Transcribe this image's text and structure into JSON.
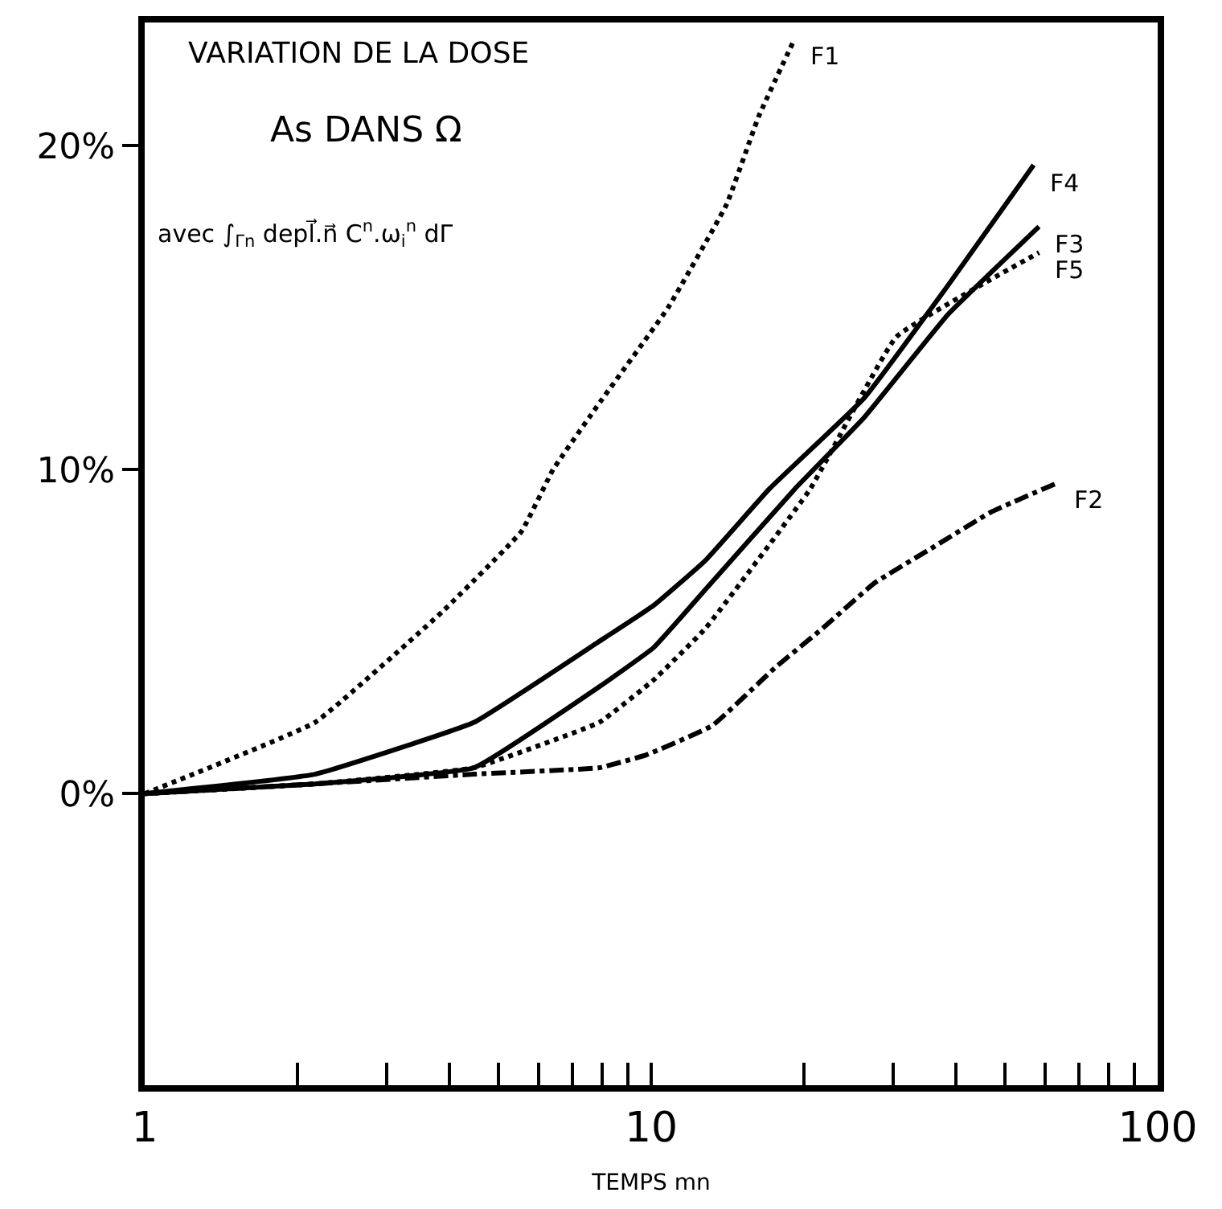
{
  "chart_data": {
    "type": "line",
    "title": "VARIATION DE LA DOSE",
    "subtitle": "As DANS Ω",
    "xlabel": "TEMPS mn",
    "annotations": [
      "avec ∫$_{Γn}$ depl⃗.n⃗ C$^{n}$.ω$_{i}$$^{n}$ dΓ"
    ],
    "log": "x",
    "legend": false,
    "marker": "none",
    "xlim": [
      1,
      100
    ],
    "ylim": [
      -9,
      23.8
    ],
    "xticks": [
      1,
      {
        "value": 2,
        "label": null
      },
      {
        "value": 3,
        "label": null
      },
      {
        "value": 4,
        "label": null
      },
      {
        "value": 5,
        "label": null
      },
      {
        "value": 6,
        "label": null
      },
      {
        "value": 7,
        "label": null
      },
      {
        "value": 8,
        "label": null
      },
      {
        "value": 9,
        "label": null
      },
      10,
      {
        "value": 20,
        "label": null
      },
      {
        "value": 30,
        "label": null
      },
      {
        "value": 40,
        "label": null
      },
      {
        "value": 50,
        "label": null
      },
      {
        "value": 60,
        "label": null
      },
      {
        "value": 70,
        "label": null
      },
      {
        "value": 80,
        "label": null
      },
      {
        "value": 90,
        "label": null
      },
      100
    ],
    "yticks": [
      {
        "value": 0,
        "label": "0%"
      },
      {
        "value": 10,
        "label": "10%"
      },
      {
        "value": 20,
        "label": "20%"
      }
    ],
    "series": [
      {
        "name": "F1",
        "color": "#000000",
        "line_style": "dotted",
        "x": [
          1,
          2.17,
          3.86,
          5.55,
          6.4,
          7.94,
          10.8,
          14.1,
          16.3,
          19.2
        ],
        "values": [
          0,
          2.2,
          5.6,
          8.1,
          10,
          12.1,
          15,
          18.2,
          20.9,
          23.3
        ]
      },
      {
        "name": "F4",
        "color": "#000000",
        "line_style": "solid",
        "x": [
          1,
          2.17,
          4.47,
          7.9,
          10.1,
          12.8,
          17.1,
          26.3,
          38.6,
          56.9
        ],
        "values": [
          0,
          0.6,
          2.2,
          4.7,
          5.8,
          7.2,
          9.4,
          12.2,
          15.7,
          19.4
        ]
      },
      {
        "name": "F3",
        "color": "#000000",
        "line_style": "solid",
        "x": [
          1,
          2.17,
          4.47,
          7.9,
          10.1,
          12.8,
          19.2,
          26.3,
          38.6,
          58.3
        ],
        "values": [
          0,
          0.3,
          0.8,
          3.3,
          4.5,
          6.3,
          9.4,
          11.6,
          14.8,
          17.5
        ]
      },
      {
        "name": "F5",
        "color": "#000000",
        "line_style": "dotted",
        "x": [
          1,
          2.17,
          4.47,
          7.9,
          10.1,
          12.8,
          20.6,
          30.5,
          58.3
        ],
        "values": [
          0,
          0.3,
          0.8,
          2.2,
          3.5,
          5.1,
          9.4,
          14.1,
          16.7
        ]
      },
      {
        "name": "F2",
        "color": "#000000",
        "line_style": "dashdot",
        "x": [
          1,
          2.17,
          4.47,
          7.9,
          9.8,
          13.2,
          17.6,
          21.8,
          27.6,
          36,
          47,
          63.6
        ],
        "values": [
          0,
          0.3,
          0.6,
          0.8,
          1.2,
          2.1,
          3.9,
          5.1,
          6.5,
          7.6,
          8.7,
          9.6
        ]
      }
    ]
  }
}
